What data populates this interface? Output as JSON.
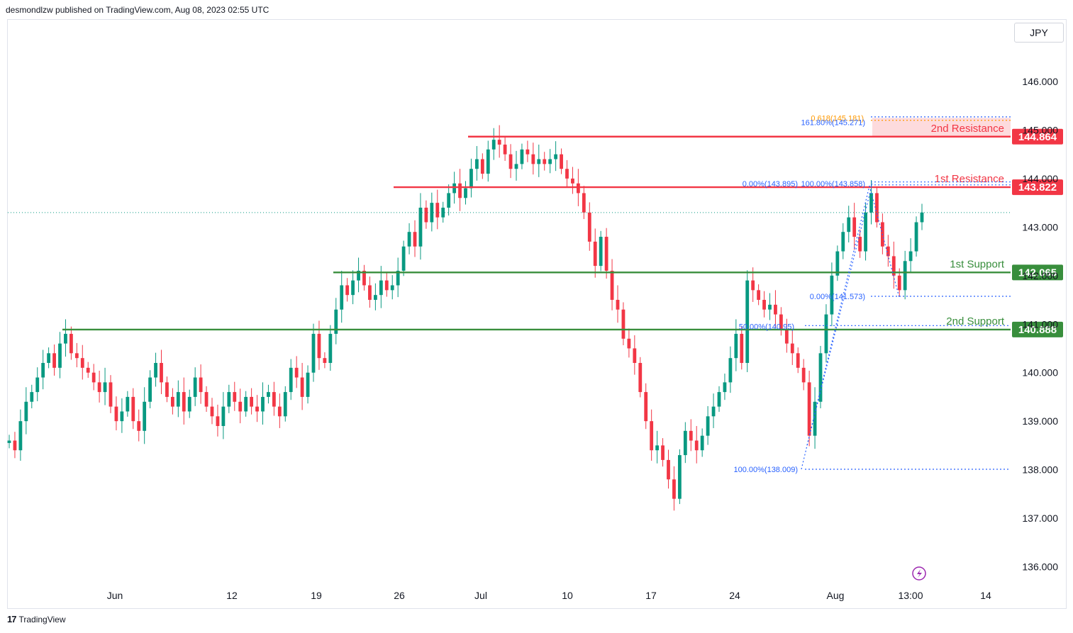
{
  "publisher": "desmondlzw published on TradingView.com, Aug 08, 2023 02:55 UTC",
  "currency": "JPY",
  "footer_brand": "TradingView",
  "colors": {
    "up": "#089981",
    "down": "#f23645",
    "resistance": "#f23645",
    "support": "#388e3c",
    "fib": "#2962ff",
    "fib_orange": "#ff9800"
  },
  "chart_data": {
    "type": "candlestick",
    "y_ticks": [
      "146.000",
      "145.000",
      "144.000",
      "143.000",
      "142.000",
      "141.000",
      "140.000",
      "139.000",
      "138.000",
      "137.000",
      "136.000"
    ],
    "x_ticks": [
      "Jun",
      "12",
      "19",
      "26",
      "Jul",
      "10",
      "17",
      "24",
      "Aug",
      "13:00",
      "14"
    ],
    "levels": [
      {
        "label": "2nd Resistance",
        "value": "144.864",
        "kind": "resistance"
      },
      {
        "label": "1st Resistance",
        "value": "143.822",
        "kind": "resistance"
      },
      {
        "label": "1st Support",
        "value": "142.065",
        "kind": "support"
      },
      {
        "label": "2nd Support",
        "value": "140.888",
        "kind": "support"
      }
    ],
    "fib_labels": [
      {
        "text": "0.618(145.181)",
        "price": 145.25,
        "color": "orange"
      },
      {
        "text": "161.80%(145.271)",
        "price": 145.16,
        "color": "blue"
      },
      {
        "text": "0.00%(143.895)",
        "price": 143.895,
        "color": "blue"
      },
      {
        "text": "100.00%(143.858)",
        "price": 143.895,
        "color": "blue"
      },
      {
        "text": "0.00%(141.573)",
        "price": 141.573,
        "color": "blue"
      },
      {
        "text": "50.00%(140.95)",
        "price": 140.95,
        "color": "blue"
      },
      {
        "text": "100.00%(138.009)",
        "price": 138.009,
        "color": "blue"
      }
    ],
    "last_price": 143.3,
    "closes": [
      138.6,
      138.4,
      139.0,
      139.4,
      139.6,
      139.9,
      140.2,
      140.4,
      140.1,
      140.6,
      140.8,
      140.4,
      140.3,
      140.1,
      140.0,
      139.8,
      139.6,
      139.8,
      139.3,
      139.0,
      139.2,
      139.5,
      139.0,
      138.8,
      139.4,
      139.9,
      140.2,
      139.8,
      139.5,
      139.3,
      139.6,
      139.2,
      139.5,
      139.9,
      139.6,
      139.3,
      139.1,
      138.9,
      139.3,
      139.6,
      139.4,
      139.2,
      139.5,
      139.3,
      139.2,
      139.5,
      139.6,
      139.3,
      139.1,
      139.6,
      140.1,
      139.9,
      139.5,
      140.0,
      140.8,
      140.3,
      140.2,
      140.8,
      141.3,
      141.8,
      141.6,
      141.9,
      142.1,
      141.8,
      141.5,
      141.6,
      141.9,
      141.7,
      141.8,
      142.1,
      142.6,
      142.9,
      142.6,
      143.4,
      143.1,
      143.5,
      143.2,
      143.4,
      143.7,
      143.9,
      143.6,
      143.8,
      144.2,
      144.4,
      144.1,
      144.6,
      144.8,
      144.7,
      144.5,
      144.2,
      144.3,
      144.6,
      144.5,
      144.3,
      144.4,
      144.3,
      144.4,
      144.5,
      144.2,
      144.0,
      143.9,
      143.7,
      143.3,
      142.7,
      142.2,
      142.8,
      142.1,
      141.5,
      141.3,
      140.7,
      140.5,
      140.2,
      139.6,
      139.0,
      138.4,
      138.5,
      138.2,
      137.8,
      137.4,
      138.3,
      138.8,
      138.6,
      138.4,
      138.7,
      139.1,
      139.3,
      139.6,
      139.8,
      140.3,
      140.8,
      140.2,
      141.9,
      141.7,
      141.5,
      141.3,
      141.4,
      141.2,
      140.9,
      140.6,
      140.4,
      140.1,
      139.8,
      138.7,
      139.4,
      140.4,
      141.2,
      142.0,
      142.5,
      142.9,
      143.2,
      142.8,
      142.5,
      143.3,
      143.7,
      143.1,
      142.6,
      142.4,
      142.0,
      141.7,
      142.3,
      142.5,
      143.1,
      143.3
    ]
  }
}
